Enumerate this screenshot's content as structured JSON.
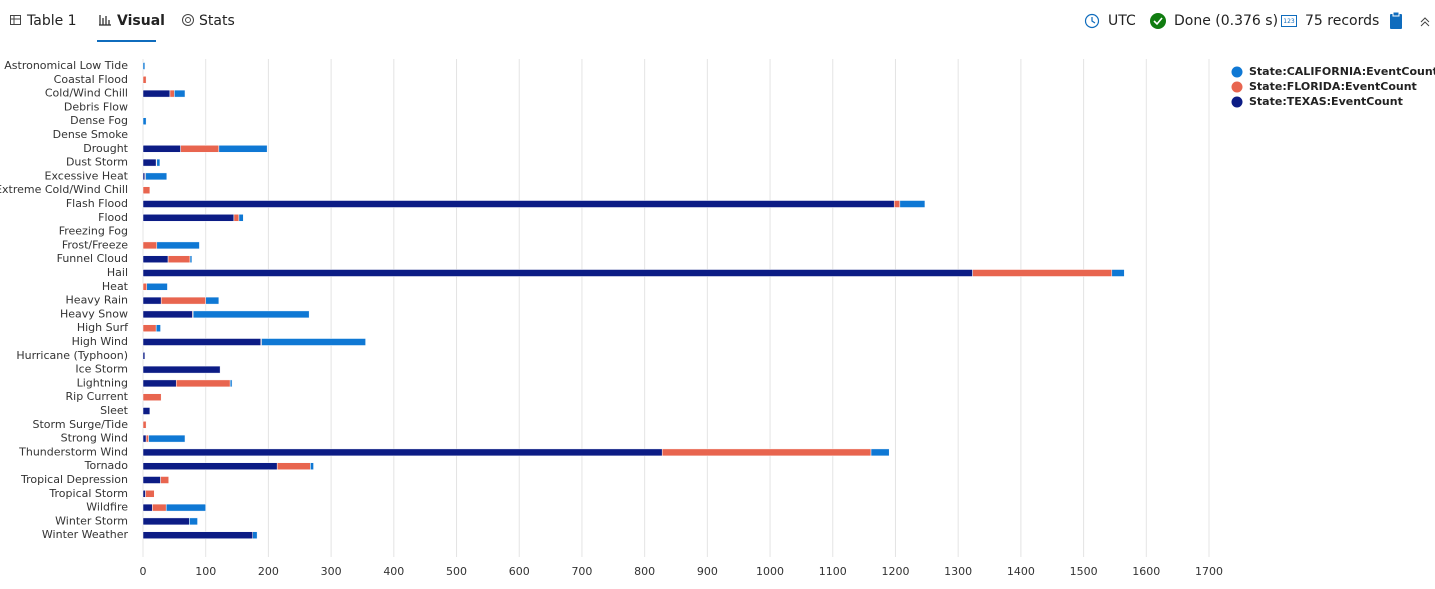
{
  "ui": {
    "tabs": [
      "Table 1",
      "Visual",
      "Stats"
    ],
    "timezone": "UTC",
    "status": "Done (0.376 s)",
    "records": "75 records"
  },
  "chart_data": {
    "type": "bar",
    "orientation": "horizontal",
    "stacked": true,
    "legend": "top-right",
    "grid": true,
    "categories": [
      "Astronomical Low Tide",
      "Coastal Flood",
      "Cold/Wind Chill",
      "Debris Flow",
      "Dense Fog",
      "Dense Smoke",
      "Drought",
      "Dust Storm",
      "Excessive Heat",
      "Extreme Cold/Wind Chill",
      "Flash Flood",
      "Flood",
      "Freezing Fog",
      "Frost/Freeze",
      "Funnel Cloud",
      "Hail",
      "Heat",
      "Heavy Rain",
      "Heavy Snow",
      "High Surf",
      "High Wind",
      "Hurricane (Typhoon)",
      "Ice Storm",
      "Lightning",
      "Rip Current",
      "Sleet",
      "Storm Surge/Tide",
      "Strong Wind",
      "Thunderstorm Wind",
      "Tornado",
      "Tropical Depression",
      "Tropical Storm",
      "Wildfire",
      "Winter Storm",
      "Winter Weather"
    ],
    "series": [
      {
        "name": "State:CALIFORNIA:EventCount",
        "color": "#0f78d4",
        "values": [
          3,
          0,
          17,
          0,
          5,
          0,
          77,
          5,
          34,
          0,
          40,
          7,
          0,
          68,
          3,
          20,
          33,
          21,
          185,
          7,
          166,
          0,
          0,
          3,
          0,
          0,
          0,
          58,
          29,
          5,
          0,
          0,
          63,
          13,
          7
        ]
      },
      {
        "name": "State:FLORIDA:EventCount",
        "color": "#e8654f",
        "values": [
          0,
          5,
          7,
          0,
          0,
          0,
          61,
          1,
          1,
          11,
          9,
          8,
          0,
          22,
          35,
          222,
          6,
          71,
          1,
          21,
          1,
          0,
          0,
          86,
          29,
          0,
          5,
          4,
          333,
          53,
          13,
          14,
          22,
          0,
          0
        ]
      },
      {
        "name": "State:TEXAS:EventCount",
        "color": "#0c1c85",
        "values": [
          0,
          0,
          43,
          0,
          0,
          0,
          60,
          21,
          3,
          0,
          1198,
          145,
          0,
          0,
          40,
          1323,
          0,
          29,
          79,
          0,
          188,
          3,
          123,
          53,
          0,
          11,
          0,
          5,
          828,
          214,
          28,
          4,
          15,
          74,
          175
        ]
      }
    ],
    "xlim": [
      0,
      1700
    ],
    "xticks": [
      0,
      100,
      200,
      300,
      400,
      500,
      600,
      700,
      800,
      900,
      1000,
      1100,
      1200,
      1300,
      1400,
      1500,
      1600,
      1700
    ]
  }
}
